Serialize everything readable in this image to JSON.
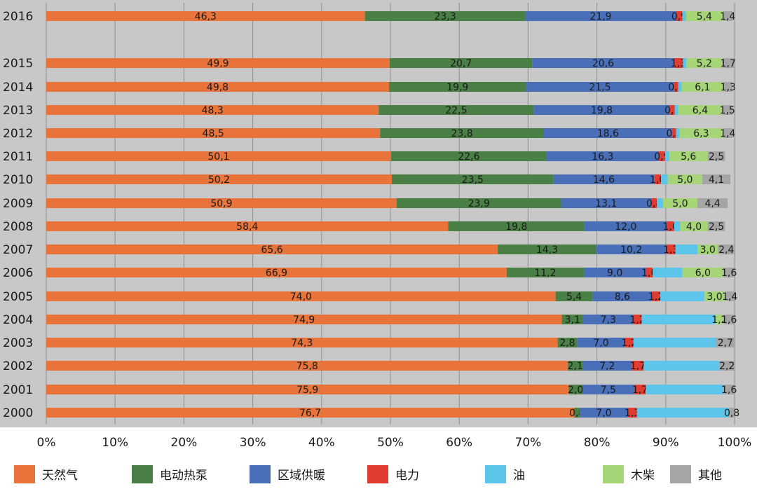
{
  "chart_data": {
    "type": "bar",
    "orientation": "horizontal",
    "stacked": "percent",
    "categories": [
      "2016",
      "2015",
      "2014",
      "2013",
      "2012",
      "2011",
      "2010",
      "2009",
      "2008",
      "2007",
      "2006",
      "2005",
      "2004",
      "2003",
      "2002",
      "2001",
      "2000"
    ],
    "series": [
      {
        "name": "天然气",
        "color": "#E8743B",
        "values": [
          46.3,
          49.9,
          49.8,
          48.3,
          48.5,
          50.1,
          50.2,
          50.9,
          58.4,
          65.6,
          66.9,
          74.0,
          74.9,
          74.3,
          75.8,
          75.9,
          76.7
        ],
        "labels": [
          "46,3",
          "49,9",
          "49,8",
          "48,3",
          "48,5",
          "50,1",
          "50,2",
          "50,9",
          "58,4",
          "65,6",
          "66,9",
          "74,0",
          "74,9",
          "74,3",
          "75,8",
          "75,9",
          "76,7"
        ]
      },
      {
        "name": "电动热泵",
        "color": "#4A7F45",
        "values": [
          23.3,
          20.7,
          19.9,
          22.5,
          23.8,
          22.6,
          23.5,
          23.9,
          19.8,
          14.3,
          11.2,
          5.4,
          3.1,
          2.8,
          2.1,
          2.0,
          0.8
        ],
        "labels": [
          "23,3",
          "20,7",
          "19,9",
          "22,5",
          "23,8",
          "22,6",
          "23,5",
          "23,9",
          "19,8",
          "14,3",
          "11,2",
          "5,4",
          "3,1",
          "2,8",
          "2,1",
          "2,0",
          "0,8"
        ]
      },
      {
        "name": "区域供暖",
        "color": "#4A6FB9",
        "values": [
          21.9,
          20.6,
          21.5,
          19.8,
          18.6,
          16.3,
          14.6,
          13.1,
          12.0,
          10.2,
          9.0,
          8.6,
          7.3,
          7.0,
          7.2,
          7.5,
          7.0
        ],
        "labels": [
          "21,9",
          "20,6",
          "21,5",
          "19,8",
          "18,6",
          "16,3",
          "14,6",
          "13,1",
          "12,0",
          "10,2",
          "9,0",
          "8,6",
          "7,3",
          "7,0",
          "7,2",
          "7,5",
          "7,0"
        ]
      },
      {
        "name": "电力",
        "color": "#E03C31",
        "values": [
          0.9,
          1.3,
          0.6,
          0.7,
          0.6,
          0.9,
          1.0,
          0.8,
          1.0,
          1.3,
          1.0,
          1.2,
          1.2,
          1.2,
          1.7,
          1.7,
          1.3
        ],
        "labels": [
          "0,9",
          "1,3",
          "0,6",
          "0,7",
          "0,6",
          "0,9",
          "1,0",
          "0,8",
          "1,0",
          "1,3",
          "1,0",
          "1,2",
          "1,2",
          "1,2",
          "1,7",
          "1,7",
          "1,3"
        ]
      },
      {
        "name": "油",
        "color": "#5DC4EA",
        "values": [
          0.5,
          0.5,
          0.5,
          0.5,
          0.5,
          0.6,
          1.0,
          0.9,
          0.9,
          3.2,
          4.3,
          6.4,
          10.7,
          12.0,
          11.0,
          11.3,
          13.4
        ],
        "labels": [
          "",
          "",
          "",
          "",
          "",
          "",
          "",
          "",
          "",
          "",
          "",
          "",
          "",
          "",
          "",
          "",
          ""
        ]
      },
      {
        "name": "木柴",
        "color": "#A6D578",
        "values": [
          5.4,
          5.2,
          6.1,
          6.4,
          6.3,
          5.6,
          5.0,
          5.0,
          4.0,
          3.0,
          6.0,
          3.0,
          1.2,
          0.0,
          0.0,
          0.0,
          0.0
        ],
        "labels": [
          "5,4",
          "5,2",
          "6,1",
          "6,4",
          "6,3",
          "5,6",
          "5,0",
          "5,0",
          "4,0",
          "3,0",
          "6,0",
          "3,0",
          "1,2",
          "",
          "",
          "",
          ""
        ]
      },
      {
        "name": "其他",
        "color": "#A5A5A5",
        "values": [
          1.4,
          1.7,
          1.3,
          1.5,
          1.4,
          2.5,
          4.1,
          4.4,
          2.5,
          2.4,
          1.6,
          1.4,
          1.6,
          2.7,
          2.2,
          1.6,
          0.8
        ],
        "labels": [
          "1,4",
          "1,7",
          "1,3",
          "1,5",
          "1,4",
          "2,5",
          "4,1",
          "4,4",
          "2,5",
          "2,4",
          "1,6",
          "1,4",
          "1,6",
          "2,7",
          "2,2",
          "1,6",
          "0,8"
        ]
      }
    ],
    "x_ticks": [
      "0%",
      "10%",
      "20%",
      "30%",
      "40%",
      "50%",
      "60%",
      "70%",
      "80%",
      "90%",
      "100%"
    ],
    "xlim": [
      0,
      100
    ],
    "grid": "vertical",
    "legend_position": "bottom",
    "background": "#C8C8C8"
  }
}
